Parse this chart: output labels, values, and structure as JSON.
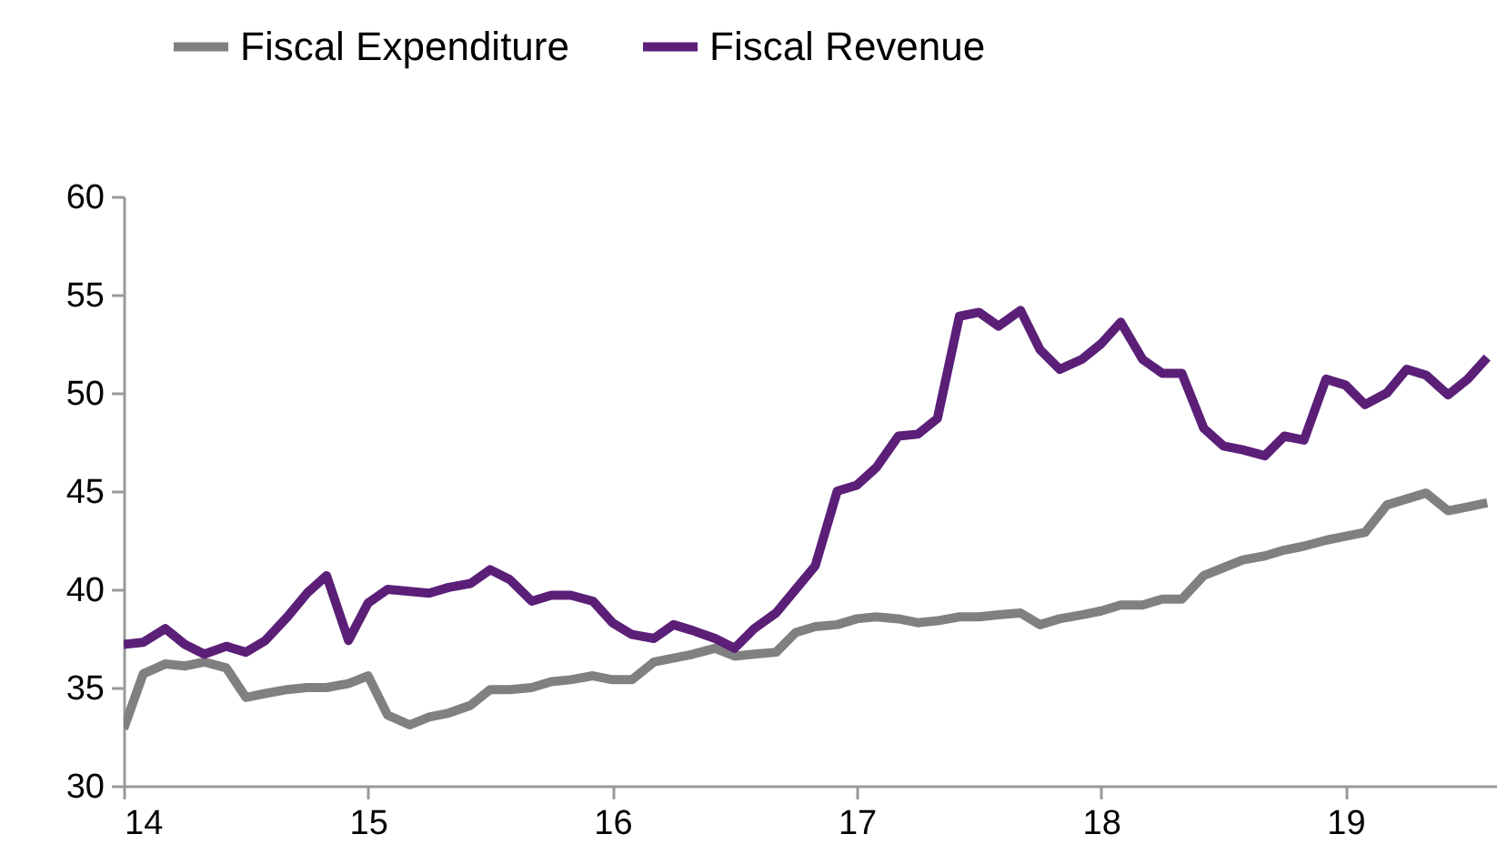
{
  "chart_data": {
    "type": "line",
    "x": [
      14,
      14.08,
      14.17,
      14.25,
      14.33,
      14.42,
      14.5,
      14.58,
      14.67,
      14.75,
      14.83,
      14.92,
      15,
      15.08,
      15.17,
      15.25,
      15.33,
      15.42,
      15.5,
      15.58,
      15.67,
      15.75,
      15.83,
      15.92,
      16,
      16.08,
      16.17,
      16.25,
      16.33,
      16.42,
      16.5,
      16.58,
      16.67,
      16.75,
      16.83,
      16.92,
      17,
      17.08,
      17.17,
      17.25,
      17.33,
      17.42,
      17.5,
      17.58,
      17.67,
      17.75,
      17.83,
      17.92,
      18,
      18.08,
      18.17,
      18.25,
      18.33,
      18.42,
      18.5,
      18.58,
      18.67,
      18.75,
      18.83,
      18.92,
      19,
      19.08,
      19.17,
      19.25,
      19.33,
      19.42,
      19.5,
      19.58
    ],
    "series": [
      {
        "name": "Fiscal Expenditure",
        "color": "#808080",
        "values": [
          32.9,
          35.7,
          36.2,
          36.1,
          36.3,
          36.0,
          34.5,
          34.7,
          34.9,
          35.0,
          35.0,
          35.2,
          35.6,
          33.6,
          33.1,
          33.5,
          33.7,
          34.1,
          34.9,
          34.9,
          35.0,
          35.3,
          35.4,
          35.6,
          35.4,
          35.4,
          36.3,
          36.5,
          36.7,
          37.0,
          36.6,
          36.7,
          36.8,
          37.8,
          38.1,
          38.2,
          38.5,
          38.6,
          38.5,
          38.3,
          38.4,
          38.6,
          38.6,
          38.7,
          38.8,
          38.2,
          38.5,
          38.7,
          38.9,
          39.2,
          39.2,
          39.5,
          39.5,
          40.7,
          41.1,
          41.5,
          41.7,
          42.0,
          42.2,
          42.5,
          42.7,
          42.9,
          44.3,
          44.6,
          44.9,
          44.0,
          44.2,
          44.4
        ]
      },
      {
        "name": "Fiscal Revenue",
        "color": "#5b1f78",
        "values": [
          37.2,
          37.3,
          38.0,
          37.2,
          36.7,
          37.1,
          36.8,
          37.4,
          38.6,
          39.8,
          40.7,
          37.4,
          39.3,
          40.0,
          39.9,
          39.8,
          40.1,
          40.3,
          41.0,
          40.5,
          39.4,
          39.7,
          39.7,
          39.4,
          38.3,
          37.7,
          37.5,
          38.2,
          37.9,
          37.5,
          37.0,
          38.0,
          38.8,
          40.0,
          41.2,
          45.0,
          45.3,
          46.2,
          47.8,
          47.9,
          48.7,
          53.9,
          54.1,
          53.4,
          54.2,
          52.2,
          51.2,
          51.7,
          52.5,
          53.6,
          51.7,
          51.0,
          51.0,
          48.2,
          47.3,
          47.1,
          46.8,
          47.8,
          47.6,
          50.7,
          50.4,
          49.4,
          50.0,
          51.2,
          50.9,
          49.9,
          50.7,
          51.8
        ]
      }
    ],
    "xlim": [
      14,
      19.62
    ],
    "xticks": [
      14,
      15,
      16,
      17,
      18,
      19
    ],
    "ylim": [
      30,
      60
    ],
    "yticks": [
      30,
      35,
      40,
      45,
      50,
      55,
      60
    ],
    "legend": "top",
    "line_style": "solid"
  }
}
